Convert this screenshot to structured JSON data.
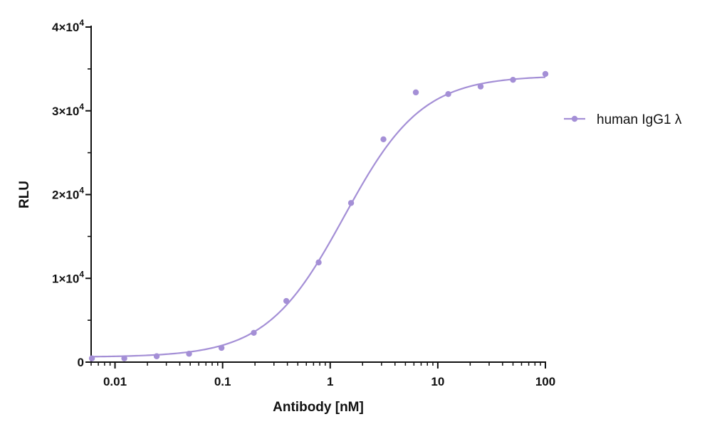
{
  "chart_data": {
    "type": "scatter",
    "title": "",
    "xlabel": "Antibody [nM]",
    "ylabel": "RLU",
    "x_scale": "log",
    "xlim": [
      0.006,
      100
    ],
    "ylim": [
      0,
      40000
    ],
    "x_ticks": [
      {
        "value": 0.01,
        "label": "0.01"
      },
      {
        "value": 0.1,
        "label": "0.1"
      },
      {
        "value": 1,
        "label": "1"
      },
      {
        "value": 10,
        "label": "10"
      },
      {
        "value": 100,
        "label": "100"
      }
    ],
    "y_ticks": [
      {
        "value": 0,
        "label": "0",
        "exp": ""
      },
      {
        "value": 10000,
        "label": "1×10",
        "exp": "4"
      },
      {
        "value": 20000,
        "label": "2×10",
        "exp": "4"
      },
      {
        "value": 30000,
        "label": "3×10",
        "exp": "4"
      },
      {
        "value": 40000,
        "label": "4×10",
        "exp": "4"
      }
    ],
    "grid": false,
    "legend_position": "right",
    "color": "#a48fd6",
    "series": [
      {
        "name": "human IgG1 λ",
        "x": [
          0.0061,
          0.0122,
          0.0244,
          0.0488,
          0.0977,
          0.195,
          0.391,
          0.781,
          1.563,
          3.125,
          6.25,
          12.5,
          25,
          50,
          100
        ],
        "y": [
          450,
          450,
          700,
          1000,
          1700,
          3500,
          7300,
          11900,
          19000,
          26600,
          32200,
          32000,
          32900,
          33700,
          34400
        ],
        "fit": {
          "model": "4PL",
          "bottom": 600,
          "top": 34200,
          "ec50": 1.35,
          "hill": 1.2
        }
      }
    ]
  }
}
